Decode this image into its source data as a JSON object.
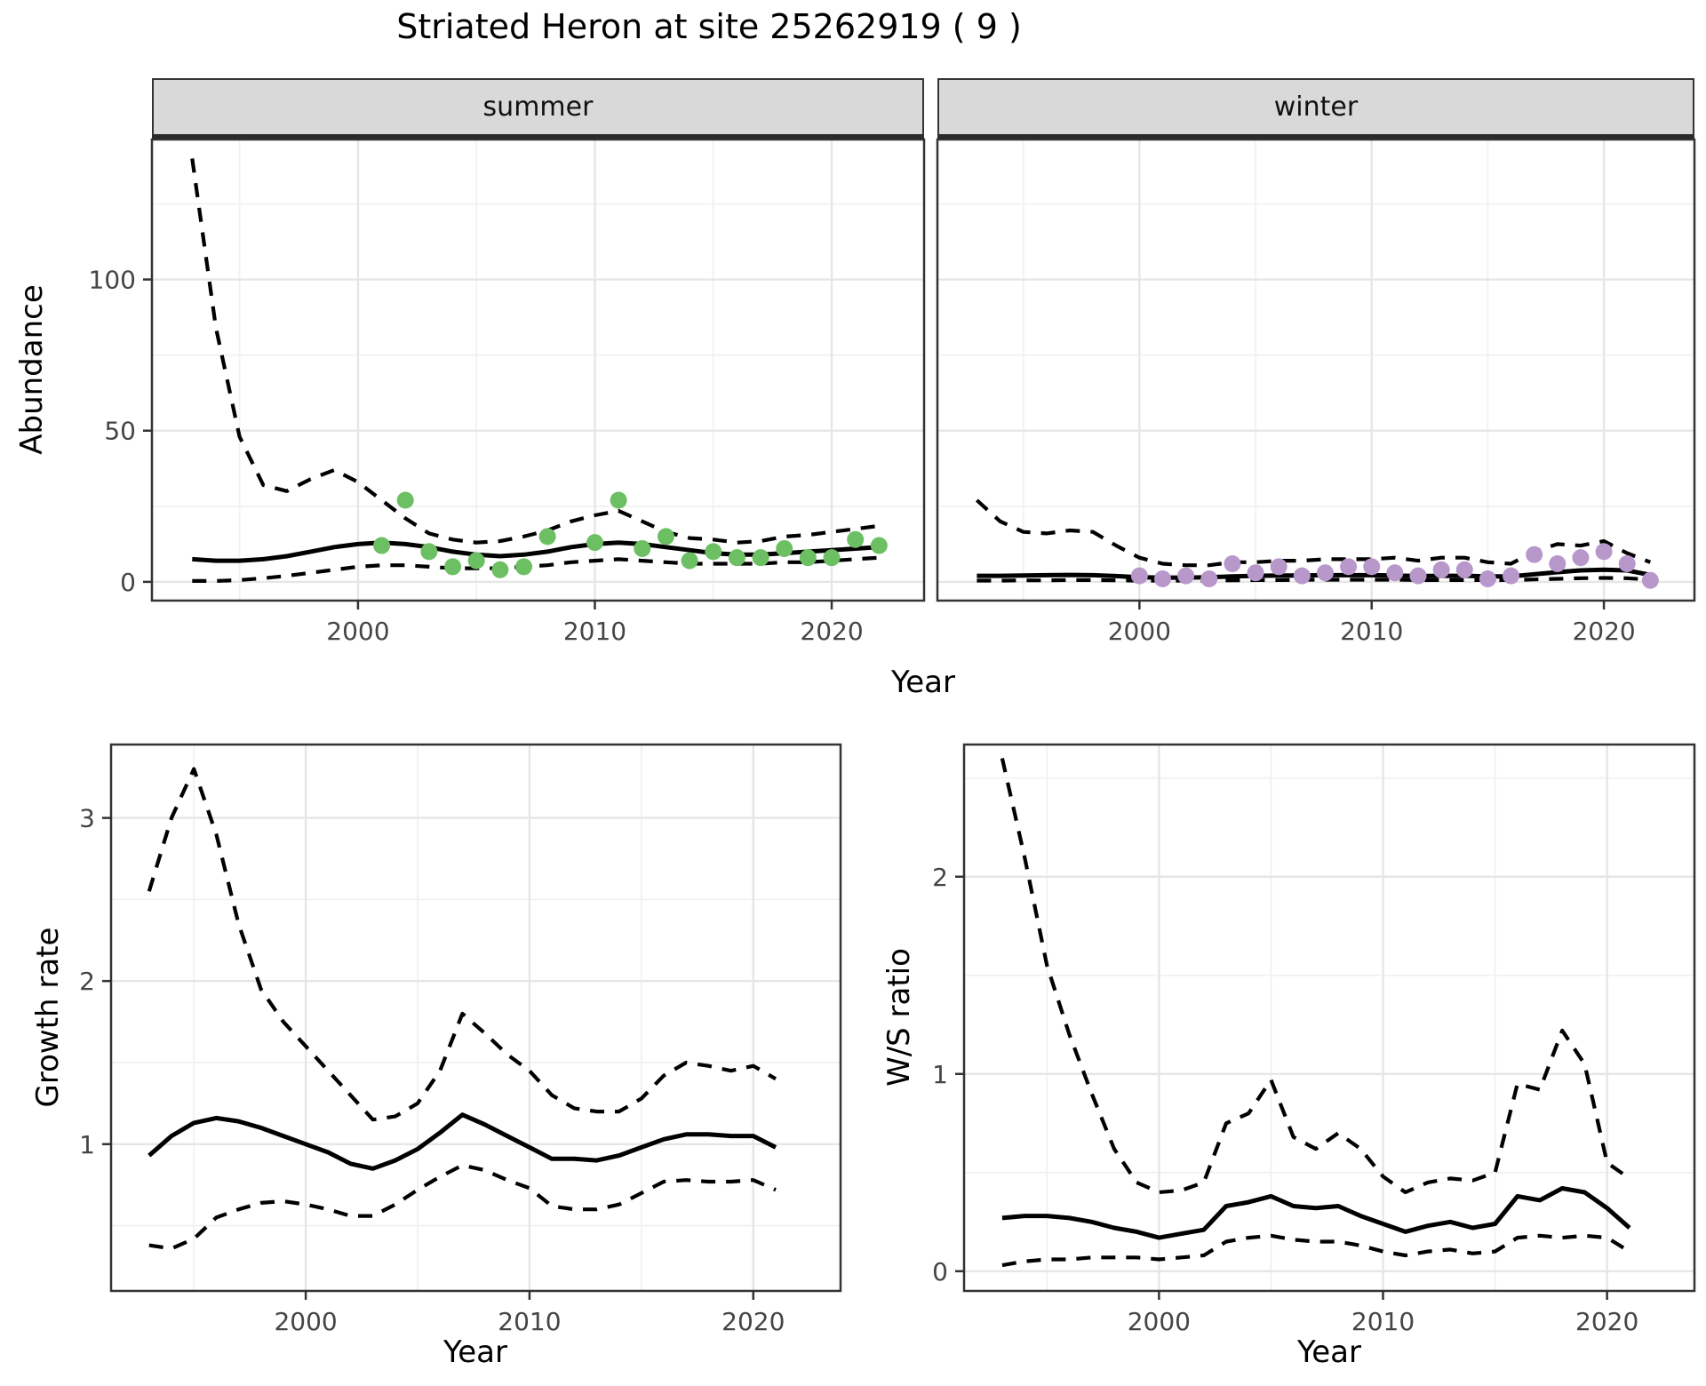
{
  "title": "Striated Heron at site 25262919 ( 9 )",
  "colors": {
    "summer_point": "#6cbf63",
    "winter_point": "#b897cb",
    "line": "#000000",
    "panel_border": "#333333",
    "grid_major": "#e6e6e6",
    "grid_minor": "#f1f1f1",
    "strip_bg": "#d9d9d9",
    "tick": "#333333",
    "tick_label": "#454545"
  },
  "top_row": {
    "ylabel": "Abundance",
    "xlabel": "Year",
    "facets": [
      "summer",
      "winter"
    ]
  },
  "bottom_left": {
    "ylabel": "Growth rate",
    "xlabel": "Year"
  },
  "bottom_right": {
    "ylabel": "W/S ratio",
    "xlabel": "Year"
  },
  "chart_data": [
    {
      "type": "line",
      "panel": "abundance-summer",
      "title": "summer",
      "ylabel": "Abundance",
      "xlabel": "Year",
      "xlim": [
        1991.3,
        2023.9
      ],
      "ylim": [
        -6.2,
        146.3
      ],
      "xticks": [
        2000,
        2010,
        2020
      ],
      "xticks_minor": [
        1995,
        2005,
        2015
      ],
      "yticks": [
        0,
        50,
        100
      ],
      "yticks_minor": [
        25,
        75,
        125
      ],
      "show_y_labels": true,
      "series": [
        {
          "name": "upper-ci",
          "style": "dashed",
          "x": [
            1993,
            1994,
            1995,
            1996,
            1997,
            1998,
            1999,
            2000,
            2001,
            2002,
            2003,
            2004,
            2005,
            2006,
            2007,
            2008,
            2009,
            2010,
            2011,
            2012,
            2013,
            2014,
            2015,
            2016,
            2017,
            2018,
            2019,
            2020,
            2021,
            2022
          ],
          "y": [
            140,
            84,
            48,
            32,
            30,
            34,
            37,
            33,
            27,
            21,
            16,
            14,
            13,
            13.5,
            15,
            17,
            20,
            22,
            23.5,
            20,
            16.5,
            14.5,
            14,
            13,
            13.5,
            15,
            15.5,
            16.5,
            17.5,
            18.5
          ]
        },
        {
          "name": "estimate",
          "style": "solid",
          "x": [
            1993,
            1994,
            1995,
            1996,
            1997,
            1998,
            1999,
            2000,
            2001,
            2002,
            2003,
            2004,
            2005,
            2006,
            2007,
            2008,
            2009,
            2010,
            2011,
            2012,
            2013,
            2014,
            2015,
            2016,
            2017,
            2018,
            2019,
            2020,
            2021,
            2022
          ],
          "y": [
            7.5,
            7,
            7,
            7.5,
            8.5,
            10,
            11.5,
            12.5,
            13,
            12.5,
            11.5,
            10,
            9,
            8.5,
            9,
            10,
            11.5,
            12.5,
            13,
            12.5,
            11.5,
            10.5,
            9.5,
            9,
            9,
            9.5,
            10,
            10.5,
            11,
            11.5
          ]
        },
        {
          "name": "lower-ci",
          "style": "dashed",
          "x": [
            1993,
            1994,
            1995,
            1996,
            1997,
            1998,
            1999,
            2000,
            2001,
            2002,
            2003,
            2004,
            2005,
            2006,
            2007,
            2008,
            2009,
            2010,
            2011,
            2012,
            2013,
            2014,
            2015,
            2016,
            2017,
            2018,
            2019,
            2020,
            2021,
            2022
          ],
          "y": [
            0.3,
            0.3,
            0.6,
            1.2,
            2,
            3,
            4,
            5,
            5.5,
            5.5,
            5,
            4.5,
            4.5,
            4.5,
            5,
            5.5,
            6.5,
            7,
            7.5,
            7,
            6.5,
            6,
            6,
            6,
            6,
            6.5,
            6.5,
            7,
            7.5,
            8
          ]
        },
        {
          "name": "observations",
          "style": "points",
          "color_key": "summer_point",
          "x": [
            2001,
            2002,
            2003,
            2004,
            2005,
            2006,
            2007,
            2008,
            2010,
            2011,
            2012,
            2013,
            2014,
            2015,
            2016,
            2017,
            2018,
            2019,
            2020,
            2021,
            2022
          ],
          "y": [
            12,
            27,
            10,
            5,
            7,
            4,
            5,
            15,
            13,
            27,
            11,
            15,
            7,
            10,
            8,
            8,
            11,
            8,
            8,
            14,
            12
          ]
        }
      ]
    },
    {
      "type": "line",
      "panel": "abundance-winter",
      "title": "winter",
      "ylabel": "Abundance",
      "xlabel": "Year",
      "xlim": [
        1991.3,
        2023.9
      ],
      "ylim": [
        -6.2,
        146.3
      ],
      "xticks": [
        2000,
        2010,
        2020
      ],
      "xticks_minor": [
        1995,
        2005,
        2015
      ],
      "yticks": [
        0,
        50,
        100
      ],
      "yticks_minor": [
        25,
        75,
        125
      ],
      "show_y_labels": false,
      "series": [
        {
          "name": "upper-ci",
          "style": "dashed",
          "x": [
            1993,
            1994,
            1995,
            1996,
            1997,
            1998,
            1999,
            2000,
            2001,
            2002,
            2003,
            2004,
            2005,
            2006,
            2007,
            2008,
            2009,
            2010,
            2011,
            2012,
            2013,
            2014,
            2015,
            2016,
            2017,
            2018,
            2019,
            2020,
            2021,
            2022
          ],
          "y": [
            27,
            20,
            16.5,
            16,
            17,
            16.5,
            12,
            8,
            6,
            5.5,
            5.5,
            6.5,
            6.5,
            7,
            7,
            7.5,
            7.5,
            7.5,
            8,
            7,
            8,
            8,
            6.5,
            6,
            10,
            12.5,
            12,
            13.5,
            9.5,
            6.5
          ]
        },
        {
          "name": "estimate",
          "style": "solid",
          "x": [
            1993,
            1994,
            1995,
            1996,
            1997,
            1998,
            1999,
            2000,
            2001,
            2002,
            2003,
            2004,
            2005,
            2006,
            2007,
            2008,
            2009,
            2010,
            2011,
            2012,
            2013,
            2014,
            2015,
            2016,
            2017,
            2018,
            2019,
            2020,
            2021,
            2022
          ],
          "y": [
            2,
            2,
            2.1,
            2.2,
            2.3,
            2.2,
            1.9,
            1.5,
            1.4,
            1.4,
            1.5,
            1.8,
            2,
            2.1,
            2.1,
            2.2,
            2.2,
            2.2,
            2.1,
            1.9,
            2,
            2,
            1.8,
            1.8,
            2.5,
            3.2,
            3.8,
            4,
            3.8,
            2.3
          ]
        },
        {
          "name": "lower-ci",
          "style": "dashed",
          "x": [
            1993,
            1994,
            1995,
            1996,
            1997,
            1998,
            1999,
            2000,
            2001,
            2002,
            2003,
            2004,
            2005,
            2006,
            2007,
            2008,
            2009,
            2010,
            2011,
            2012,
            2013,
            2014,
            2015,
            2016,
            2017,
            2018,
            2019,
            2020,
            2021,
            2022
          ],
          "y": [
            0.4,
            0.4,
            0.5,
            0.5,
            0.6,
            0.6,
            0.5,
            0.4,
            0.4,
            0.4,
            0.4,
            0.5,
            0.6,
            0.6,
            0.7,
            0.7,
            0.7,
            0.7,
            0.7,
            0.6,
            0.6,
            0.6,
            0.6,
            0.6,
            0.8,
            1,
            1.2,
            1.3,
            1.2,
            0.7
          ]
        },
        {
          "name": "observations",
          "style": "points",
          "color_key": "winter_point",
          "x": [
            2000,
            2001,
            2002,
            2003,
            2004,
            2005,
            2006,
            2007,
            2008,
            2009,
            2010,
            2011,
            2012,
            2013,
            2014,
            2015,
            2016,
            2017,
            2018,
            2019,
            2020,
            2021,
            2022
          ],
          "y": [
            2,
            1,
            2,
            1,
            6,
            3,
            5,
            2,
            3,
            5,
            5,
            3,
            2,
            4,
            4,
            1,
            2,
            9,
            6,
            8,
            10,
            6,
            0.5
          ]
        }
      ]
    },
    {
      "type": "line",
      "panel": "growth-rate",
      "title": "Growth rate",
      "ylabel": "Growth rate",
      "xlabel": "Year",
      "xlim": [
        1991.3,
        2023.9
      ],
      "ylim": [
        0.1,
        3.45
      ],
      "xticks": [
        2000,
        2010,
        2020
      ],
      "xticks_minor": [
        1995,
        2005,
        2015
      ],
      "yticks": [
        1,
        2,
        3
      ],
      "yticks_minor": [
        0.5,
        1.5,
        2.5
      ],
      "show_y_labels": true,
      "series": [
        {
          "name": "upper-ci",
          "style": "dashed",
          "x": [
            1993,
            1994,
            1995,
            1996,
            1997,
            1998,
            1999,
            2000,
            2001,
            2002,
            2003,
            2004,
            2005,
            2006,
            2007,
            2008,
            2009,
            2010,
            2011,
            2012,
            2013,
            2014,
            2015,
            2016,
            2017,
            2018,
            2019,
            2020,
            2021
          ],
          "y": [
            2.55,
            3.0,
            3.3,
            2.9,
            2.35,
            1.95,
            1.75,
            1.6,
            1.45,
            1.3,
            1.15,
            1.17,
            1.25,
            1.45,
            1.8,
            1.68,
            1.55,
            1.45,
            1.3,
            1.22,
            1.2,
            1.2,
            1.28,
            1.42,
            1.5,
            1.48,
            1.45,
            1.48,
            1.4
          ]
        },
        {
          "name": "estimate",
          "style": "solid",
          "x": [
            1993,
            1994,
            1995,
            1996,
            1997,
            1998,
            1999,
            2000,
            2001,
            2002,
            2003,
            2004,
            2005,
            2006,
            2007,
            2008,
            2009,
            2010,
            2011,
            2012,
            2013,
            2014,
            2015,
            2016,
            2017,
            2018,
            2019,
            2020,
            2021
          ],
          "y": [
            0.93,
            1.05,
            1.13,
            1.16,
            1.14,
            1.1,
            1.05,
            1.0,
            0.95,
            0.88,
            0.85,
            0.9,
            0.97,
            1.07,
            1.18,
            1.12,
            1.05,
            0.98,
            0.91,
            0.91,
            0.9,
            0.93,
            0.98,
            1.03,
            1.06,
            1.06,
            1.05,
            1.05,
            0.98
          ]
        },
        {
          "name": "lower-ci",
          "style": "dashed",
          "x": [
            1993,
            1994,
            1995,
            1996,
            1997,
            1998,
            1999,
            2000,
            2001,
            2002,
            2003,
            2004,
            2005,
            2006,
            2007,
            2008,
            2009,
            2010,
            2011,
            2012,
            2013,
            2014,
            2015,
            2016,
            2017,
            2018,
            2019,
            2020,
            2021
          ],
          "y": [
            0.38,
            0.36,
            0.42,
            0.55,
            0.6,
            0.64,
            0.65,
            0.63,
            0.6,
            0.56,
            0.56,
            0.63,
            0.72,
            0.8,
            0.87,
            0.84,
            0.78,
            0.73,
            0.62,
            0.6,
            0.6,
            0.63,
            0.7,
            0.77,
            0.78,
            0.77,
            0.77,
            0.78,
            0.72
          ]
        }
      ]
    },
    {
      "type": "line",
      "panel": "ws-ratio",
      "title": "W/S ratio",
      "ylabel": "W/S ratio",
      "xlabel": "Year",
      "xlim": [
        1991.3,
        2023.9
      ],
      "ylim": [
        -0.1,
        2.67
      ],
      "xticks": [
        2000,
        2010,
        2020
      ],
      "xticks_minor": [
        1995,
        2005,
        2015
      ],
      "yticks": [
        0,
        1,
        2
      ],
      "yticks_minor": [
        0.5,
        1.5,
        2.5
      ],
      "show_y_labels": true,
      "series": [
        {
          "name": "upper-ci",
          "style": "dashed",
          "x": [
            1993,
            1994,
            1995,
            1996,
            1997,
            1998,
            1999,
            2000,
            2001,
            2002,
            2003,
            2004,
            2005,
            2006,
            2007,
            2008,
            2009,
            2010,
            2011,
            2012,
            2013,
            2014,
            2015,
            2016,
            2017,
            2018,
            2019,
            2020,
            2021
          ],
          "y": [
            2.6,
            2.1,
            1.55,
            1.2,
            0.9,
            0.62,
            0.45,
            0.4,
            0.41,
            0.45,
            0.75,
            0.8,
            0.97,
            0.68,
            0.62,
            0.7,
            0.62,
            0.48,
            0.4,
            0.45,
            0.47,
            0.46,
            0.5,
            0.95,
            0.92,
            1.22,
            1.05,
            0.55,
            0.47
          ]
        },
        {
          "name": "estimate",
          "style": "solid",
          "x": [
            1993,
            1994,
            1995,
            1996,
            1997,
            1998,
            1999,
            2000,
            2001,
            2002,
            2003,
            2004,
            2005,
            2006,
            2007,
            2008,
            2009,
            2010,
            2011,
            2012,
            2013,
            2014,
            2015,
            2016,
            2017,
            2018,
            2019,
            2020,
            2021
          ],
          "y": [
            0.27,
            0.28,
            0.28,
            0.27,
            0.25,
            0.22,
            0.2,
            0.17,
            0.19,
            0.21,
            0.33,
            0.35,
            0.38,
            0.33,
            0.32,
            0.33,
            0.28,
            0.24,
            0.2,
            0.23,
            0.25,
            0.22,
            0.24,
            0.38,
            0.36,
            0.42,
            0.4,
            0.32,
            0.22
          ]
        },
        {
          "name": "lower-ci",
          "style": "dashed",
          "x": [
            1993,
            1994,
            1995,
            1996,
            1997,
            1998,
            1999,
            2000,
            2001,
            2002,
            2003,
            2004,
            2005,
            2006,
            2007,
            2008,
            2009,
            2010,
            2011,
            2012,
            2013,
            2014,
            2015,
            2016,
            2017,
            2018,
            2019,
            2020,
            2021
          ],
          "y": [
            0.03,
            0.05,
            0.06,
            0.06,
            0.07,
            0.07,
            0.07,
            0.06,
            0.07,
            0.08,
            0.15,
            0.17,
            0.18,
            0.16,
            0.15,
            0.15,
            0.13,
            0.1,
            0.08,
            0.1,
            0.11,
            0.09,
            0.1,
            0.17,
            0.18,
            0.17,
            0.18,
            0.17,
            0.1
          ]
        }
      ]
    }
  ]
}
